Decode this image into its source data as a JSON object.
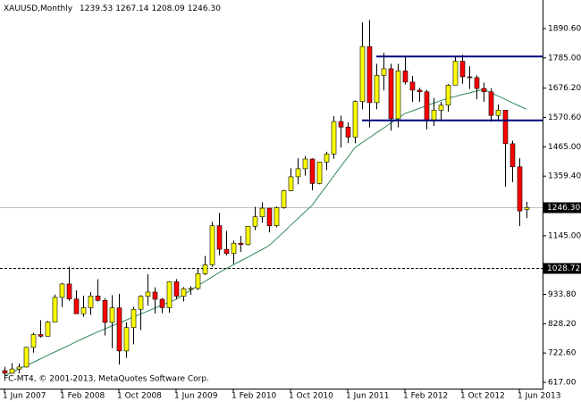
{
  "chart_data": {
    "type": "candlestick",
    "title": "XAUUSD,Monthly",
    "last_labels": [
      "1239.53",
      "1267.14",
      "1208.09",
      "1246.30"
    ],
    "footer": "FC-MT4, © 2001-2013, MetaQuotes Software Corp.",
    "categories": [
      "1 Jun 2007",
      null,
      null,
      null,
      null,
      null,
      null,
      null,
      "1 Feb 2008",
      null,
      null,
      null,
      null,
      null,
      null,
      null,
      "1 Oct 2008",
      null,
      null,
      null,
      null,
      null,
      null,
      null,
      "1 Jun 2009",
      null,
      null,
      null,
      null,
      null,
      null,
      null,
      "1 Feb 2010",
      null,
      null,
      null,
      null,
      null,
      null,
      null,
      "1 Oct 2010",
      null,
      null,
      null,
      null,
      null,
      null,
      null,
      "1 Jun 2011",
      null,
      null,
      null,
      null,
      null,
      null,
      null,
      "1 Feb 2012",
      null,
      null,
      null,
      null,
      null,
      null,
      null,
      "1 Oct 2012",
      null,
      null,
      null,
      null,
      null,
      null,
      null,
      "1 Jun 2013",
      null
    ],
    "open": [
      659,
      650,
      665,
      672,
      743,
      789,
      783,
      834,
      923,
      971,
      917,
      864,
      886,
      928,
      912,
      833,
      885,
      730,
      814,
      880,
      927,
      942,
      916,
      886,
      979,
      927,
      954,
      955,
      1008,
      1040,
      1181,
      1096,
      1081,
      1118,
      1113,
      1179,
      1213,
      1244,
      1181,
      1246,
      1307,
      1357,
      1386,
      1421,
      1333,
      1410,
      1439,
      1556,
      1536,
      1500,
      1628,
      1826,
      1624,
      1722,
      1746,
      1566,
      1738,
      1698,
      1669,
      1663,
      1558,
      1597,
      1615,
      1687,
      1773,
      1717,
      1714,
      1675,
      1663,
      1578,
      1597,
      1476,
      1393,
      1239.53
    ],
    "high": [
      673,
      686,
      685,
      745,
      795,
      841,
      838,
      933,
      975,
      1033,
      948,
      929,
      942,
      988,
      920,
      931,
      936,
      833,
      889,
      931,
      1006,
      959,
      921,
      981,
      989,
      960,
      963,
      1025,
      1072,
      1195,
      1227,
      1162,
      1127,
      1145,
      1180,
      1249,
      1265,
      1245,
      1250,
      1310,
      1388,
      1424,
      1432,
      1424,
      1411,
      1447,
      1575,
      1577,
      1553,
      1632,
      1913,
      1921,
      1764,
      1803,
      1764,
      1764,
      1791,
      1720,
      1677,
      1670,
      1641,
      1627,
      1691,
      1788,
      1796,
      1755,
      1722,
      1696,
      1676,
      1617,
      1598,
      1487,
      1424,
      1267.14
    ],
    "low": [
      642,
      648,
      649,
      670,
      724,
      778,
      782,
      834,
      888,
      911,
      863,
      853,
      860,
      908,
      786,
      740,
      681,
      705,
      754,
      805,
      893,
      865,
      866,
      868,
      916,
      908,
      932,
      949,
      1003,
      1033,
      1074,
      1074,
      1044,
      1087,
      1110,
      1165,
      1192,
      1157,
      1175,
      1242,
      1305,
      1330,
      1361,
      1308,
      1330,
      1381,
      1422,
      1462,
      1478,
      1478,
      1600,
      1535,
      1600,
      1668,
      1523,
      1535,
      1689,
      1627,
      1627,
      1527,
      1540,
      1562,
      1591,
      1687,
      1692,
      1673,
      1636,
      1627,
      1555,
      1563,
      1321,
      1338,
      1180,
      1208.09
    ],
    "close": [
      650,
      665,
      672,
      743,
      789,
      783,
      834,
      923,
      971,
      917,
      864,
      886,
      928,
      912,
      833,
      885,
      730,
      814,
      880,
      927,
      942,
      916,
      886,
      979,
      927,
      954,
      955,
      1008,
      1040,
      1181,
      1096,
      1081,
      1118,
      1113,
      1179,
      1213,
      1244,
      1181,
      1246,
      1307,
      1357,
      1386,
      1421,
      1333,
      1410,
      1439,
      1556,
      1536,
      1500,
      1628,
      1826,
      1624,
      1722,
      1746,
      1566,
      1738,
      1698,
      1669,
      1663,
      1558,
      1597,
      1615,
      1687,
      1773,
      1717,
      1714,
      1675,
      1663,
      1578,
      1597,
      1476,
      1393,
      1234,
      1246.3
    ],
    "ma": [
      640,
      652,
      665,
      677,
      689,
      701,
      714,
      726,
      738,
      750,
      763,
      775,
      787,
      798,
      809,
      820,
      830,
      841,
      852,
      863,
      873,
      884,
      895,
      905,
      916,
      932,
      948,
      964,
      980,
      996,
      1012,
      1026,
      1040,
      1054,
      1067,
      1081,
      1095,
      1109,
      1133,
      1157,
      1182,
      1206,
      1230,
      1254,
      1289,
      1323,
      1358,
      1393,
      1427,
      1462,
      1480,
      1497,
      1515,
      1532,
      1550,
      1567,
      1585,
      1594,
      1603,
      1613,
      1622,
      1631,
      1640,
      1646,
      1653,
      1659,
      1666,
      1672,
      1660,
      1648,
      1636,
      1624,
      1612,
      1600
    ],
    "ma_color": "#2e8b57",
    "up_color": "#ffff00",
    "down_color": "#ff0000",
    "hlines": [
      {
        "value": 1790,
        "start": 52,
        "color": "#000080"
      },
      {
        "value": 1560,
        "start": 50,
        "color": "#000080"
      }
    ],
    "price_levels": [
      {
        "value": 1246.3,
        "label": "1246.30",
        "style": "current"
      },
      {
        "value": 1028.72,
        "label": "1028.72",
        "style": "dashed"
      }
    ],
    "ylim": [
      594.5,
      1993.5
    ],
    "yticks": [
      {
        "value": 617,
        "label": "617.00"
      },
      {
        "value": 722.6,
        "label": "722.60"
      },
      {
        "value": 828.2,
        "label": "828.20"
      },
      {
        "value": 933.8,
        "label": "933.80"
      },
      {
        "value": 1145,
        "label": "1145.00"
      },
      {
        "value": 1359.4,
        "label": "1359.40"
      },
      {
        "value": 1465,
        "label": "1465.00"
      },
      {
        "value": 1570.6,
        "label": "1570.60"
      },
      {
        "value": 1676.2,
        "label": "1676.20"
      },
      {
        "value": 1785,
        "label": "1785.00"
      },
      {
        "value": 1890.6,
        "label": "1890.60"
      }
    ]
  }
}
